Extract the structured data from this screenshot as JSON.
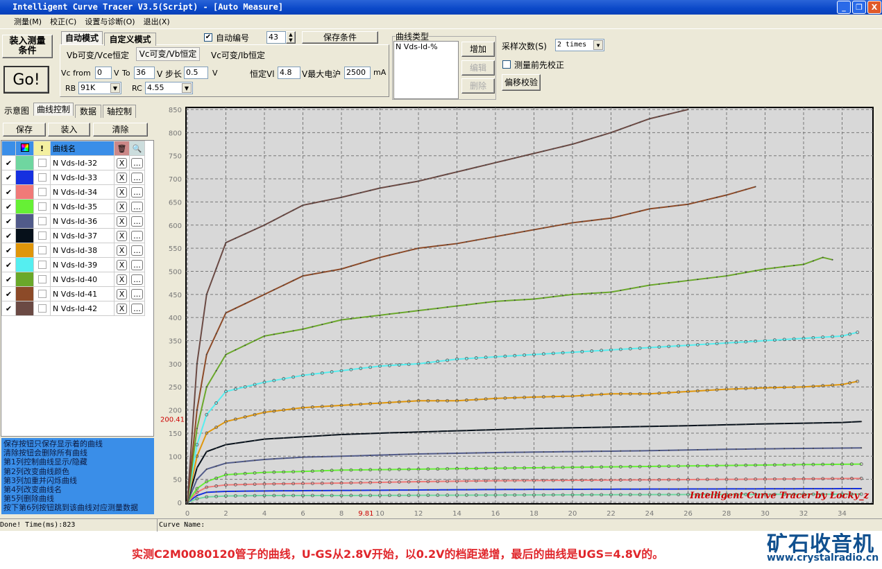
{
  "window": {
    "title": "Intelligent Curve Tracer V3.5(Script) - [Auto Measure]",
    "min": "_",
    "max": "❐",
    "close": "X"
  },
  "menu": [
    "测量(M)",
    "校正(C)",
    "设置与诊断(O)",
    "退出(X)"
  ],
  "top": {
    "load_btn": "装入测量\n条件",
    "go_btn": "Go!",
    "mode_tabs": [
      "自动模式",
      "自定义模式"
    ],
    "auto_number_label": "自动编号",
    "auto_number_checked": true,
    "auto_number_value": "43",
    "save_cond_btn": "保存条件",
    "sub_tabs": [
      "Vb可变/Vce恒定",
      "Vc可变/Vb恒定",
      "Vc可变/Ib恒定"
    ],
    "vc_from_label": "Vc from",
    "vc_from": "0",
    "v1": "V",
    "to_label": "To",
    "to": "36",
    "step_label": "V 步长",
    "step": "0.5",
    "v2": "V",
    "const_label": "恒定Vl",
    "const_v": "4.8",
    "max_label": "V最大电沪",
    "max_i": "2500",
    "ma": "mA",
    "rb_label": "RB",
    "rb": "91K",
    "rc_label": "RC",
    "rc": "4.55",
    "curve_type_title": "曲线类型",
    "curve_type_item": "N Vds-Id-%",
    "add_btn": "增加",
    "edit_btn": "编辑",
    "delete_btn": "删除",
    "sample_label": "采样次数(S)",
    "sample_value": "2 times",
    "precal_label": "测量前先校正",
    "precal_checked": false,
    "offset_btn": "偏移校验"
  },
  "left": {
    "tabs": [
      "示意图",
      "曲线控制",
      "数据",
      "轴控制"
    ],
    "buttons": [
      "保存",
      "装入",
      "清除"
    ],
    "header": "曲线名",
    "del_label": "X",
    "jump_label": "...",
    "curves": [
      {
        "name": "N Vds-Id-32",
        "color": "#6fd6a0",
        "checked": true
      },
      {
        "name": "N Vds-Id-33",
        "color": "#1530e0",
        "checked": true
      },
      {
        "name": "N Vds-Id-34",
        "color": "#f07a78",
        "checked": true
      },
      {
        "name": "N Vds-Id-35",
        "color": "#66f035",
        "checked": true
      },
      {
        "name": "N Vds-Id-36",
        "color": "#515b8a",
        "checked": true
      },
      {
        "name": "N Vds-Id-37",
        "color": "#06101a",
        "checked": true
      },
      {
        "name": "N Vds-Id-38",
        "color": "#e0960a",
        "checked": true
      },
      {
        "name": "N Vds-Id-39",
        "color": "#55eef0",
        "checked": true
      },
      {
        "name": "N Vds-Id-40",
        "color": "#6aa82a",
        "checked": true
      },
      {
        "name": "N Vds-Id-41",
        "color": "#8c4a28",
        "checked": true
      },
      {
        "name": "N Vds-Id-42",
        "color": "#6b4a44",
        "checked": true
      }
    ],
    "help": [
      "保存按钮只保存显示着的曲线",
      "清除按钮会删除所有曲线",
      "第1列控制曲线显示/隐藏",
      "第2列改变曲线颜色",
      "第3列加重并闪烁曲线",
      "第4列改变曲线名",
      "第5列删除曲线",
      "按下第6列按钮跳到该曲线对应测量数据"
    ]
  },
  "status": {
    "left": "Done!  Time(ms):823",
    "right": "Curve Name:"
  },
  "caption": "实测C2M0080120管子的曲线，U-GS从2.8V开始，以0.2V的档距递增，最后的曲线是UGS=4.8V的。",
  "logo": {
    "text": "矿石收音机",
    "url": "www.crystalradio.cn"
  },
  "chart_data": {
    "type": "line",
    "xlim": [
      0,
      35.7
    ],
    "ylim": [
      0,
      850
    ],
    "xticks": [
      0,
      2,
      4,
      6,
      8,
      10,
      12,
      14,
      16,
      18,
      20,
      22,
      24,
      26,
      28,
      30,
      32,
      34
    ],
    "yticks": [
      0,
      50,
      100,
      150,
      200,
      250,
      300,
      350,
      400,
      450,
      500,
      550,
      600,
      650,
      700,
      750,
      800,
      850
    ],
    "grid": true,
    "cursor": {
      "x": "9.81",
      "y": "200.41"
    },
    "watermark": "Intelligent Curve Tracer by Locky_z",
    "series": [
      {
        "name": "N Vds-Id-32",
        "markers": true,
        "points": [
          [
            0,
            0
          ],
          [
            0.5,
            8
          ],
          [
            1,
            12
          ],
          [
            2,
            14
          ],
          [
            4,
            15
          ],
          [
            8,
            15
          ],
          [
            16,
            16
          ],
          [
            24,
            17
          ],
          [
            35,
            18
          ]
        ]
      },
      {
        "name": "N Vds-Id-33",
        "markers": false,
        "points": [
          [
            0,
            0
          ],
          [
            0.5,
            15
          ],
          [
            1,
            22
          ],
          [
            2,
            24
          ],
          [
            4,
            25
          ],
          [
            8,
            26
          ],
          [
            16,
            28
          ],
          [
            24,
            29
          ],
          [
            35,
            30
          ]
        ]
      },
      {
        "name": "N Vds-Id-34",
        "markers": true,
        "points": [
          [
            0,
            0
          ],
          [
            0.5,
            22
          ],
          [
            1,
            33
          ],
          [
            2,
            38
          ],
          [
            4,
            40
          ],
          [
            8,
            42
          ],
          [
            12,
            45
          ],
          [
            16,
            47
          ],
          [
            20,
            48
          ],
          [
            24,
            49
          ],
          [
            28,
            50
          ],
          [
            32,
            51
          ],
          [
            35,
            52
          ]
        ]
      },
      {
        "name": "N Vds-Id-35",
        "markers": true,
        "points": [
          [
            0,
            0
          ],
          [
            0.5,
            30
          ],
          [
            1,
            45
          ],
          [
            2,
            60
          ],
          [
            4,
            65
          ],
          [
            6,
            67
          ],
          [
            8,
            70
          ],
          [
            12,
            72
          ],
          [
            16,
            74
          ],
          [
            20,
            76
          ],
          [
            24,
            78
          ],
          [
            28,
            80
          ],
          [
            32,
            82
          ],
          [
            35,
            83
          ]
        ]
      },
      {
        "name": "N Vds-Id-36",
        "markers": false,
        "points": [
          [
            0,
            0
          ],
          [
            0.5,
            50
          ],
          [
            1,
            72
          ],
          [
            2,
            85
          ],
          [
            4,
            93
          ],
          [
            6,
            98
          ],
          [
            8,
            100
          ],
          [
            12,
            105
          ],
          [
            16,
            108
          ],
          [
            20,
            110
          ],
          [
            24,
            112
          ],
          [
            28,
            115
          ],
          [
            32,
            117
          ],
          [
            35,
            118
          ]
        ]
      },
      {
        "name": "N Vds-Id-37",
        "markers": false,
        "points": [
          [
            0,
            0
          ],
          [
            0.5,
            75
          ],
          [
            1,
            110
          ],
          [
            2,
            125
          ],
          [
            4,
            137
          ],
          [
            6,
            142
          ],
          [
            8,
            147
          ],
          [
            10,
            150
          ],
          [
            14,
            155
          ],
          [
            18,
            160
          ],
          [
            22,
            163
          ],
          [
            26,
            166
          ],
          [
            30,
            170
          ],
          [
            34,
            173
          ],
          [
            35,
            175
          ]
        ]
      },
      {
        "name": "N Vds-Id-38",
        "markers": true,
        "points": [
          [
            0,
            0
          ],
          [
            0.5,
            100
          ],
          [
            1,
            150
          ],
          [
            2,
            175
          ],
          [
            4,
            195
          ],
          [
            6,
            205
          ],
          [
            8,
            210
          ],
          [
            10,
            215
          ],
          [
            12,
            220
          ],
          [
            14,
            220
          ],
          [
            16,
            225
          ],
          [
            18,
            228
          ],
          [
            20,
            230
          ],
          [
            22,
            235
          ],
          [
            24,
            235
          ],
          [
            26,
            240
          ],
          [
            28,
            245
          ],
          [
            30,
            248
          ],
          [
            32,
            250
          ],
          [
            34,
            255
          ],
          [
            34.8,
            262
          ]
        ]
      },
      {
        "name": "N Vds-Id-39",
        "markers": true,
        "points": [
          [
            0,
            0
          ],
          [
            0.5,
            125
          ],
          [
            1,
            190
          ],
          [
            2,
            240
          ],
          [
            4,
            260
          ],
          [
            6,
            275
          ],
          [
            8,
            285
          ],
          [
            10,
            295
          ],
          [
            12,
            300
          ],
          [
            14,
            310
          ],
          [
            16,
            315
          ],
          [
            18,
            320
          ],
          [
            20,
            325
          ],
          [
            22,
            330
          ],
          [
            24,
            335
          ],
          [
            26,
            340
          ],
          [
            28,
            345
          ],
          [
            30,
            350
          ],
          [
            32,
            355
          ],
          [
            34,
            360
          ],
          [
            34.8,
            368
          ]
        ]
      },
      {
        "name": "N Vds-Id-40",
        "markers": false,
        "points": [
          [
            0,
            0
          ],
          [
            0.5,
            160
          ],
          [
            1,
            250
          ],
          [
            2,
            320
          ],
          [
            4,
            360
          ],
          [
            6,
            375
          ],
          [
            8,
            395
          ],
          [
            10,
            405
          ],
          [
            12,
            415
          ],
          [
            14,
            425
          ],
          [
            16,
            435
          ],
          [
            18,
            440
          ],
          [
            20,
            450
          ],
          [
            22,
            455
          ],
          [
            24,
            470
          ],
          [
            26,
            480
          ],
          [
            28,
            490
          ],
          [
            30,
            505
          ],
          [
            32,
            515
          ],
          [
            33,
            530
          ],
          [
            33.5,
            525
          ]
        ]
      },
      {
        "name": "N Vds-Id-41",
        "markers": false,
        "points": [
          [
            0,
            0
          ],
          [
            0.5,
            200
          ],
          [
            1,
            320
          ],
          [
            2,
            410
          ],
          [
            4,
            450
          ],
          [
            6,
            490
          ],
          [
            8,
            505
          ],
          [
            10,
            530
          ],
          [
            12,
            550
          ],
          [
            14,
            560
          ],
          [
            16,
            575
          ],
          [
            18,
            590
          ],
          [
            20,
            605
          ],
          [
            22,
            615
          ],
          [
            24,
            635
          ],
          [
            26,
            645
          ],
          [
            28,
            665
          ],
          [
            29.5,
            683
          ]
        ]
      },
      {
        "name": "N Vds-Id-42",
        "markers": false,
        "points": [
          [
            0,
            0
          ],
          [
            0.5,
            300
          ],
          [
            1,
            450
          ],
          [
            2,
            562
          ],
          [
            4,
            600
          ],
          [
            6,
            643
          ],
          [
            8,
            660
          ],
          [
            10,
            680
          ],
          [
            12,
            695
          ],
          [
            14,
            715
          ],
          [
            16,
            735
          ],
          [
            18,
            755
          ],
          [
            20,
            775
          ],
          [
            22,
            800
          ],
          [
            24,
            830
          ],
          [
            26,
            850
          ]
        ]
      }
    ]
  }
}
